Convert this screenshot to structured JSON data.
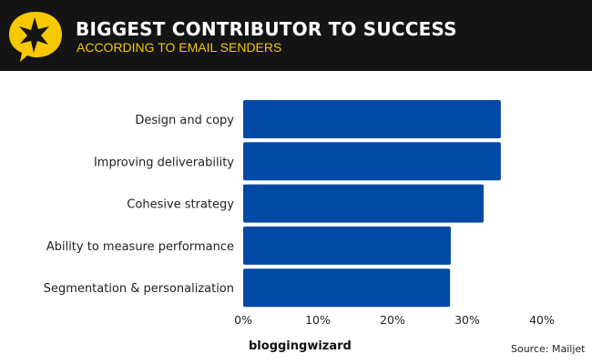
{
  "header": {
    "title": "BIGGEST CONTRIBUTOR TO SUCCESS",
    "subtitle": "ACCORDING TO EMAIL SENDERS",
    "icon": "star-speech-bubble-icon"
  },
  "colors": {
    "bar": "#004aa6",
    "header_bg": "#141414",
    "accent": "#f5c800"
  },
  "chart_data": {
    "type": "bar",
    "orientation": "horizontal",
    "title": "BIGGEST CONTRIBUTOR TO SUCCESS",
    "subtitle": "ACCORDING TO EMAIL SENDERS",
    "categories": [
      "Design and copy",
      "Improving deliverability",
      "Cohesive strategy",
      "Ability to measure performance",
      "Segmentation & personalization"
    ],
    "values": [
      34.5,
      34.5,
      32.2,
      27.8,
      27.7
    ],
    "unit": "%",
    "xlim": [
      0,
      40
    ],
    "xticks": [
      "0%",
      "10%",
      "20%",
      "30%",
      "40%"
    ],
    "grid": false
  },
  "footer": {
    "brand": "bloggingwizard",
    "source": "Source: Mailjet"
  }
}
